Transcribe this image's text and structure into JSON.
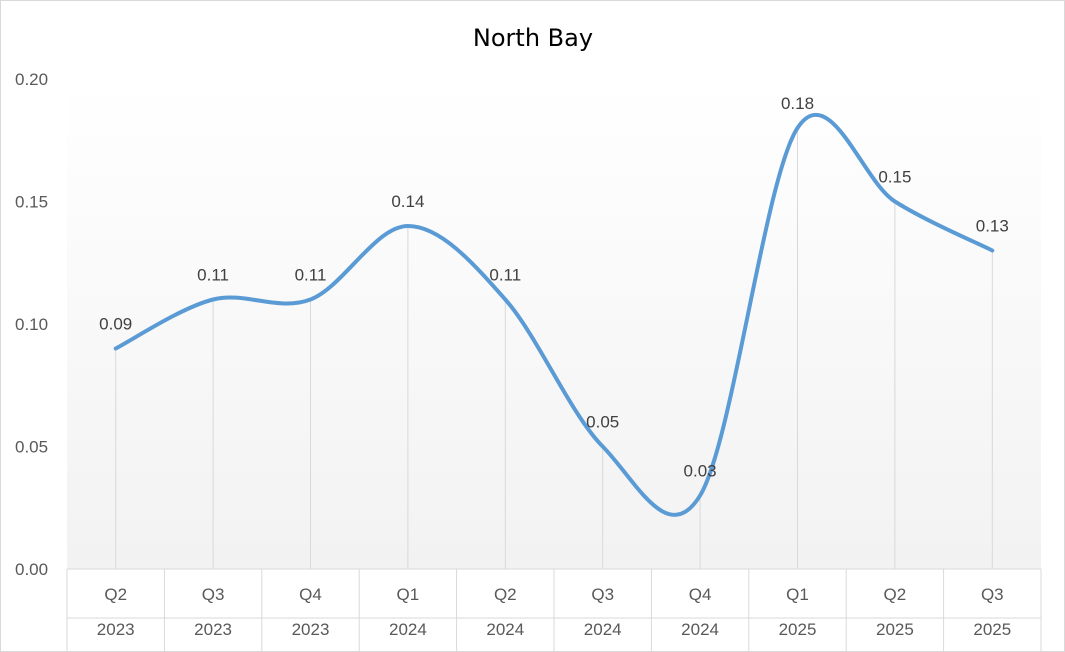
{
  "chart_data": {
    "type": "line",
    "title": "North Bay",
    "categories": [
      {
        "quarter": "Q2",
        "year": "2023"
      },
      {
        "quarter": "Q3",
        "year": "2023"
      },
      {
        "quarter": "Q4",
        "year": "2023"
      },
      {
        "quarter": "Q1",
        "year": "2024"
      },
      {
        "quarter": "Q2",
        "year": "2024"
      },
      {
        "quarter": "Q3",
        "year": "2024"
      },
      {
        "quarter": "Q4",
        "year": "2024"
      },
      {
        "quarter": "Q1",
        "year": "2025"
      },
      {
        "quarter": "Q2",
        "year": "2025"
      },
      {
        "quarter": "Q3",
        "year": "2025"
      }
    ],
    "values": [
      0.09,
      0.11,
      0.11,
      0.14,
      0.11,
      0.05,
      0.03,
      0.18,
      0.15,
      0.13
    ],
    "data_labels": [
      "0.09",
      "0.11",
      "0.11",
      "0.14",
      "0.11",
      "0.05",
      "0.03",
      "0.18",
      "0.15",
      "0.13"
    ],
    "y_ticks": [
      "0.00",
      "0.05",
      "0.10",
      "0.15",
      "0.20"
    ],
    "ylim": [
      0,
      0.2
    ],
    "smooth": true,
    "drop_lines": true,
    "grid": false,
    "legend": "none",
    "colors": {
      "line": "#5B9BD5",
      "drop_line": "#d9d9d9",
      "axis": "#d9d9d9",
      "plot_gradient_top": "#ffffff",
      "plot_gradient_bottom": "#f2f2f2"
    }
  }
}
